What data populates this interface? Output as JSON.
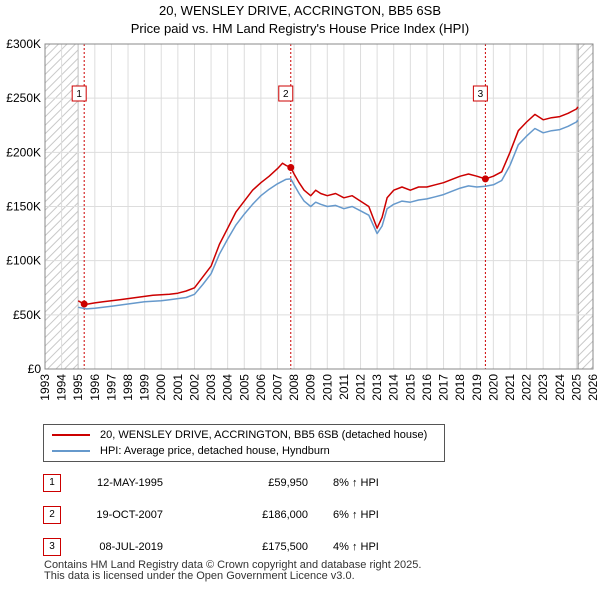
{
  "header": {
    "title_line1": "20, WENSLEY DRIVE, ACCRINGTON, BB5 6SB",
    "title_line2": "Price paid vs. HM Land Registry's House Price Index (HPI)"
  },
  "chart_data": {
    "type": "line",
    "title": "20, WENSLEY DRIVE, ACCRINGTON, BB5 6SB",
    "subtitle": "Price paid vs. HM Land Registry's House Price Index (HPI)",
    "xlabel": "",
    "ylabel": "",
    "xlim": [
      1993,
      2026
    ],
    "ylim": [
      0,
      300000
    ],
    "x_ticks": [
      1993,
      1994,
      1995,
      1996,
      1997,
      1998,
      1999,
      2000,
      2001,
      2002,
      2003,
      2004,
      2005,
      2006,
      2007,
      2008,
      2009,
      2010,
      2011,
      2012,
      2013,
      2014,
      2015,
      2016,
      2017,
      2018,
      2019,
      2020,
      2021,
      2022,
      2023,
      2024,
      2025,
      2026
    ],
    "y_ticks": [
      {
        "value": 0,
        "label": "£0"
      },
      {
        "value": 50000,
        "label": "£50K"
      },
      {
        "value": 100000,
        "label": "£100K"
      },
      {
        "value": 150000,
        "label": "£150K"
      },
      {
        "value": 200000,
        "label": "£200K"
      },
      {
        "value": 250000,
        "label": "£250K"
      },
      {
        "value": 300000,
        "label": "£300K"
      }
    ],
    "grid": true,
    "hatched_ranges": [
      [
        1993,
        1995.0
      ],
      [
        2025.1,
        2026
      ]
    ],
    "series": [
      {
        "name": "20, WENSLEY DRIVE, ACCRINGTON, BB5 6SB (detached house)",
        "color": "#cc0000",
        "x": [
          1995.0,
          1995.36,
          1995.6,
          1996.0,
          1996.5,
          1997.0,
          1997.5,
          1998.0,
          1998.5,
          1999.0,
          1999.5,
          2000.0,
          2000.5,
          2001.0,
          2001.5,
          2002.0,
          2002.5,
          2003.0,
          2003.5,
          2004.0,
          2004.5,
          2005.0,
          2005.5,
          2006.0,
          2006.5,
          2007.0,
          2007.3,
          2007.5,
          2007.8,
          2008.0,
          2008.3,
          2008.6,
          2009.0,
          2009.3,
          2009.6,
          2010.0,
          2010.5,
          2011.0,
          2011.5,
          2012.0,
          2012.5,
          2013.0,
          2013.3,
          2013.6,
          2014.0,
          2014.5,
          2015.0,
          2015.5,
          2016.0,
          2016.5,
          2017.0,
          2017.5,
          2018.0,
          2018.5,
          2019.0,
          2019.52,
          2020.0,
          2020.5,
          2021.0,
          2021.5,
          2022.0,
          2022.5,
          2023.0,
          2023.5,
          2024.0,
          2024.5,
          2025.0,
          2025.1
        ],
        "y": [
          63000,
          59950,
          60000,
          61000,
          62000,
          63000,
          64000,
          65000,
          66000,
          67000,
          68000,
          68500,
          69000,
          70000,
          72000,
          75000,
          85000,
          95000,
          115000,
          130000,
          145000,
          155000,
          165000,
          172000,
          178000,
          185000,
          190000,
          188000,
          186000,
          180000,
          172000,
          165000,
          160000,
          165000,
          162000,
          160000,
          162000,
          158000,
          160000,
          155000,
          150000,
          130000,
          140000,
          158000,
          165000,
          168000,
          165000,
          168000,
          168000,
          170000,
          172000,
          175000,
          178000,
          180000,
          178000,
          175500,
          178000,
          182000,
          200000,
          220000,
          228000,
          235000,
          230000,
          232000,
          233000,
          236000,
          240000,
          242000
        ]
      },
      {
        "name": "HPI: Average price, detached house, Hyndburn",
        "color": "#6699cc",
        "x": [
          1995.0,
          1995.5,
          1996.0,
          1996.5,
          1997.0,
          1997.5,
          1998.0,
          1998.5,
          1999.0,
          1999.5,
          2000.0,
          2000.5,
          2001.0,
          2001.5,
          2002.0,
          2002.5,
          2003.0,
          2003.5,
          2004.0,
          2004.5,
          2005.0,
          2005.5,
          2006.0,
          2006.5,
          2007.0,
          2007.5,
          2007.8,
          2008.0,
          2008.3,
          2008.6,
          2009.0,
          2009.3,
          2009.6,
          2010.0,
          2010.5,
          2011.0,
          2011.5,
          2012.0,
          2012.5,
          2013.0,
          2013.3,
          2013.6,
          2014.0,
          2014.5,
          2015.0,
          2015.5,
          2016.0,
          2016.5,
          2017.0,
          2017.5,
          2018.0,
          2018.5,
          2019.0,
          2019.52,
          2020.0,
          2020.5,
          2021.0,
          2021.5,
          2022.0,
          2022.5,
          2023.0,
          2023.5,
          2024.0,
          2024.5,
          2025.0,
          2025.1
        ],
        "y": [
          57000,
          55500,
          56000,
          57000,
          58000,
          59000,
          60000,
          61000,
          62000,
          62500,
          63000,
          64000,
          65000,
          66000,
          69000,
          78000,
          88000,
          106000,
          120000,
          133000,
          143000,
          152000,
          160000,
          166000,
          171000,
          175000,
          175500,
          170000,
          162000,
          155000,
          150000,
          154000,
          152000,
          150000,
          151000,
          148000,
          150000,
          146000,
          142000,
          125000,
          132000,
          148000,
          152000,
          155000,
          154000,
          156000,
          157000,
          159000,
          161000,
          164000,
          167000,
          169000,
          168000,
          168700,
          170000,
          174000,
          188000,
          207000,
          215000,
          222000,
          218000,
          220000,
          221000,
          224000,
          228000,
          230000
        ]
      }
    ],
    "sales": [
      {
        "num": "1",
        "x": 1995.36,
        "y": 59950
      },
      {
        "num": "2",
        "x": 2007.8,
        "y": 186000
      },
      {
        "num": "3",
        "x": 2019.52,
        "y": 175500
      }
    ]
  },
  "legend": {
    "items": [
      {
        "label": "20, WENSLEY DRIVE, ACCRINGTON, BB5 6SB (detached house)",
        "color": "#cc0000"
      },
      {
        "label": "HPI: Average price, detached house, Hyndburn",
        "color": "#6699cc"
      }
    ]
  },
  "sales_table": [
    {
      "num": "1",
      "date": "12-MAY-1995",
      "price": "£59,950",
      "hpi": "8% ↑ HPI"
    },
    {
      "num": "2",
      "date": "19-OCT-2007",
      "price": "£186,000",
      "hpi": "6% ↑ HPI"
    },
    {
      "num": "3",
      "date": "08-JUL-2019",
      "price": "£175,500",
      "hpi": "4% ↑ HPI"
    }
  ],
  "footer": {
    "line1": "Contains HM Land Registry data © Crown copyright and database right 2025.",
    "line2": "This data is licensed under the Open Government Licence v3.0."
  }
}
